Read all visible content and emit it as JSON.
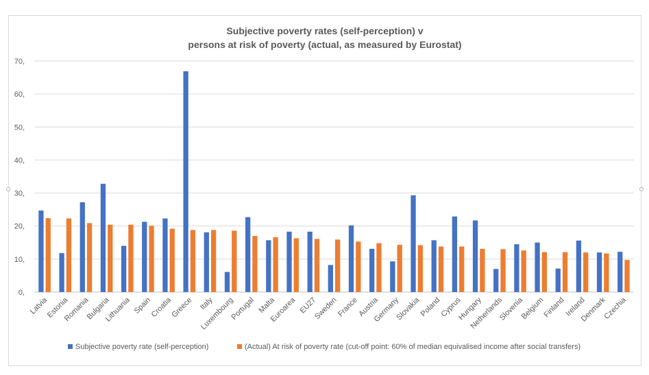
{
  "chart_data": {
    "type": "bar",
    "title_lines": [
      "Subjective poverty rates (self-perception) v",
      "persons at risk of poverty (actual, as measured by Eurostat)"
    ],
    "categories": [
      "Latvia",
      "Estonia",
      "Romania",
      "Bulgaria",
      "Lithuania",
      "Spain",
      "Croatia",
      "Greece",
      "Italy",
      "Luxembourg",
      "Portugal",
      "Malta",
      "Euroarea",
      "EU27",
      "Sweden",
      "France",
      "Austria",
      "Germany",
      "Slovakia",
      "Poland",
      "Cyprus",
      "Hungary",
      "Netherlands",
      "Slovenia",
      "Belgium",
      "Finland",
      "Ireland",
      "Denmark",
      "Czechia"
    ],
    "series": [
      {
        "name": "Subjective poverty rate (self-perception)",
        "color": "#4472c4",
        "values": [
          24.7,
          11.8,
          27.2,
          32.8,
          14.0,
          21.3,
          22.3,
          66.9,
          18.1,
          6.1,
          22.7,
          15.7,
          18.3,
          18.3,
          8.2,
          20.2,
          13.1,
          9.3,
          29.3,
          15.7,
          22.9,
          21.7,
          7.0,
          14.5,
          15.0,
          7.1,
          15.6,
          12.0,
          12.2
        ]
      },
      {
        "name": "(Actual) At risk of poverty rate (cut-off point: 60% of median equivalised income after social transfers)",
        "color": "#ed7d31",
        "values": [
          22.4,
          22.3,
          20.9,
          20.4,
          20.4,
          20.1,
          19.2,
          18.8,
          18.8,
          18.6,
          17.0,
          16.6,
          16.3,
          16.1,
          15.9,
          15.3,
          14.8,
          14.3,
          14.2,
          13.8,
          13.8,
          13.1,
          13.0,
          12.6,
          12.1,
          12.1,
          12.0,
          11.7,
          9.7
        ]
      }
    ],
    "y_ticks": [
      "0,",
      "10,",
      "20,",
      "30,",
      "40,",
      "50,",
      "60,",
      "70,"
    ],
    "ylim": [
      0,
      70
    ],
    "grid": true,
    "legend_position": "bottom"
  }
}
